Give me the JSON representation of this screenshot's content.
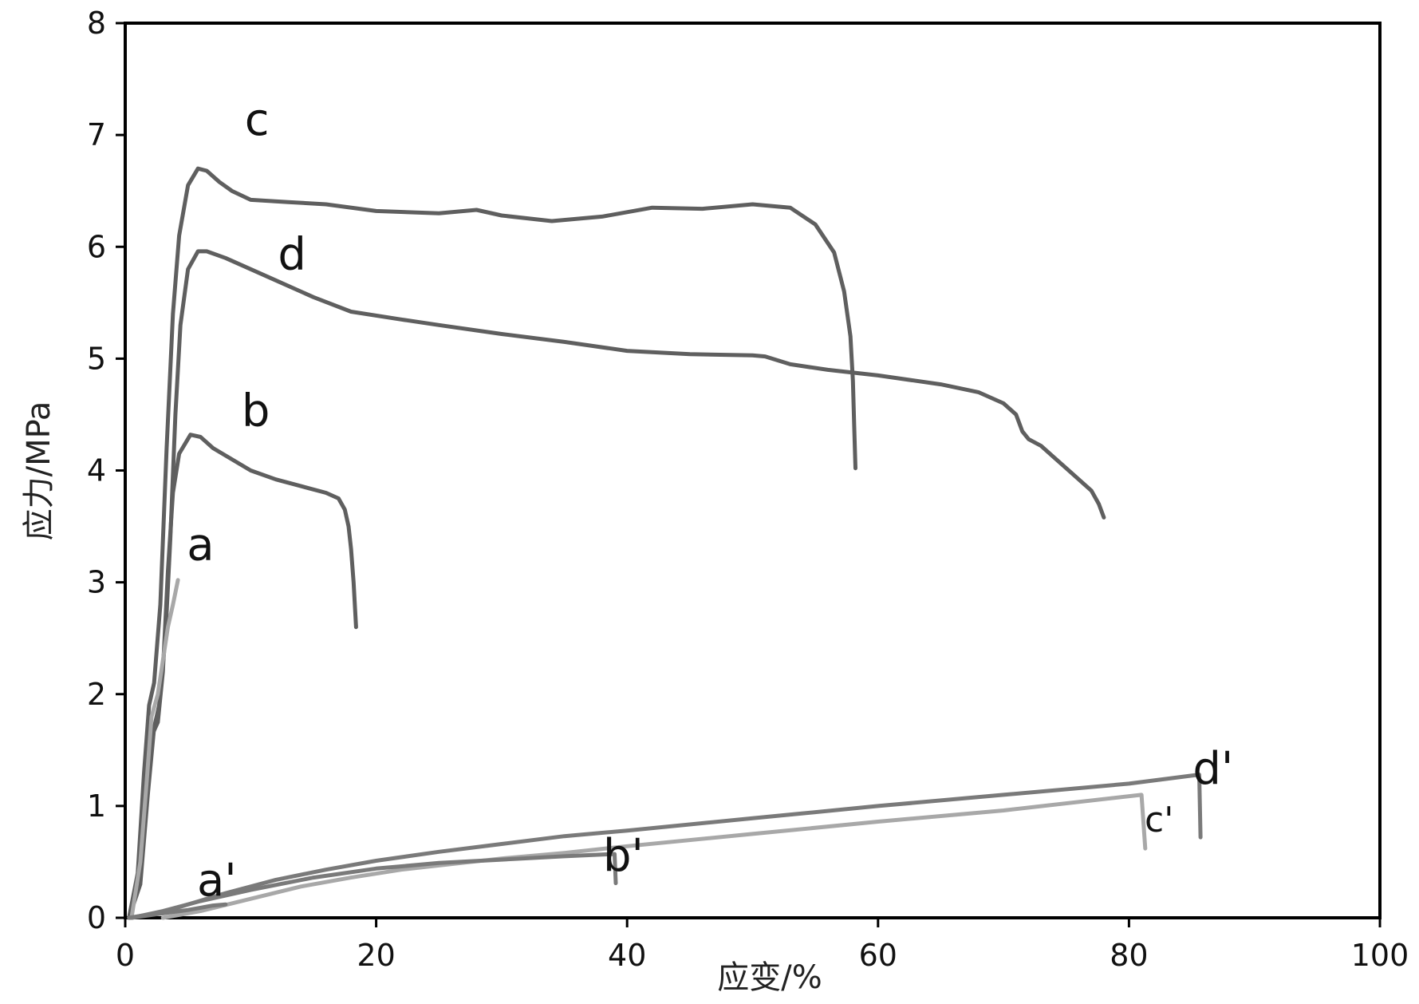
{
  "chart_data": {
    "type": "line",
    "xlabel": "应变/%",
    "ylabel": "应力/MPa",
    "xlim": [
      0,
      100
    ],
    "ylim": [
      0,
      8
    ],
    "x_ticks": [
      "0",
      "20",
      "40",
      "60",
      "80",
      "100"
    ],
    "y_ticks": [
      "0",
      "1",
      "2",
      "3",
      "4",
      "5",
      "6",
      "7",
      "8"
    ],
    "grid": false,
    "colors": {
      "dark": "#5f5f5f",
      "mid": "#7a7a7a",
      "light": "#a8a8a8"
    },
    "series": [
      {
        "name": "c",
        "color": "dark",
        "points": [
          [
            0.3,
            0
          ],
          [
            1.0,
            0.4
          ],
          [
            1.5,
            1.3
          ],
          [
            1.9,
            1.9
          ],
          [
            2.3,
            2.1
          ],
          [
            2.8,
            2.8
          ],
          [
            3.3,
            4.2
          ],
          [
            3.8,
            5.4
          ],
          [
            4.3,
            6.1
          ],
          [
            5.0,
            6.55
          ],
          [
            5.8,
            6.7
          ],
          [
            6.5,
            6.68
          ],
          [
            7.5,
            6.58
          ],
          [
            8.5,
            6.5
          ],
          [
            10,
            6.42
          ],
          [
            13,
            6.4
          ],
          [
            16,
            6.38
          ],
          [
            20,
            6.32
          ],
          [
            25,
            6.3
          ],
          [
            28,
            6.33
          ],
          [
            30,
            6.28
          ],
          [
            34,
            6.23
          ],
          [
            38,
            6.27
          ],
          [
            42,
            6.35
          ],
          [
            46,
            6.34
          ],
          [
            50,
            6.38
          ],
          [
            53,
            6.35
          ],
          [
            55,
            6.2
          ],
          [
            56.5,
            5.95
          ],
          [
            57.3,
            5.6
          ],
          [
            57.8,
            5.2
          ],
          [
            58.0,
            4.8
          ],
          [
            58.1,
            4.4
          ],
          [
            58.2,
            4.02
          ]
        ]
      },
      {
        "name": "d",
        "color": "dark",
        "points": [
          [
            0.3,
            0
          ],
          [
            1.2,
            0.3
          ],
          [
            1.8,
            1.1
          ],
          [
            2.3,
            1.7
          ],
          [
            2.7,
            1.9
          ],
          [
            3.2,
            2.5
          ],
          [
            3.6,
            3.4
          ],
          [
            4.0,
            4.5
          ],
          [
            4.4,
            5.3
          ],
          [
            5.0,
            5.8
          ],
          [
            5.8,
            5.96
          ],
          [
            6.5,
            5.96
          ],
          [
            8,
            5.9
          ],
          [
            10,
            5.8
          ],
          [
            12,
            5.7
          ],
          [
            15,
            5.55
          ],
          [
            18,
            5.42
          ],
          [
            22,
            5.35
          ],
          [
            25,
            5.3
          ],
          [
            30,
            5.22
          ],
          [
            35,
            5.15
          ],
          [
            40,
            5.07
          ],
          [
            45,
            5.04
          ],
          [
            50,
            5.03
          ],
          [
            51,
            5.02
          ],
          [
            53,
            4.95
          ],
          [
            56,
            4.9
          ],
          [
            60,
            4.85
          ],
          [
            65,
            4.77
          ],
          [
            68,
            4.7
          ],
          [
            70,
            4.6
          ],
          [
            71,
            4.5
          ],
          [
            71.5,
            4.35
          ],
          [
            72,
            4.28
          ],
          [
            73,
            4.22
          ],
          [
            74,
            4.12
          ],
          [
            75,
            4.02
          ],
          [
            76,
            3.92
          ],
          [
            77,
            3.82
          ],
          [
            77.6,
            3.7
          ],
          [
            78,
            3.58
          ]
        ]
      },
      {
        "name": "b",
        "color": "dark",
        "points": [
          [
            0.4,
            0
          ],
          [
            1.2,
            0.4
          ],
          [
            1.8,
            1.2
          ],
          [
            2.2,
            1.65
          ],
          [
            2.6,
            1.75
          ],
          [
            3.0,
            2.2
          ],
          [
            3.4,
            3.1
          ],
          [
            3.8,
            3.8
          ],
          [
            4.3,
            4.15
          ],
          [
            5.2,
            4.32
          ],
          [
            6.0,
            4.3
          ],
          [
            7,
            4.2
          ],
          [
            8.5,
            4.1
          ],
          [
            10,
            4.0
          ],
          [
            12,
            3.92
          ],
          [
            14,
            3.86
          ],
          [
            16,
            3.8
          ],
          [
            17,
            3.75
          ],
          [
            17.5,
            3.65
          ],
          [
            17.8,
            3.5
          ],
          [
            18.0,
            3.3
          ],
          [
            18.2,
            3.0
          ],
          [
            18.4,
            2.6
          ]
        ]
      },
      {
        "name": "a",
        "color": "light",
        "points": [
          [
            0.5,
            0
          ],
          [
            1.2,
            0.5
          ],
          [
            1.7,
            1.2
          ],
          [
            2.1,
            1.8
          ],
          [
            2.6,
            2.0
          ],
          [
            3.0,
            2.3
          ],
          [
            3.4,
            2.6
          ],
          [
            3.8,
            2.8
          ],
          [
            4.2,
            3.02
          ]
        ]
      },
      {
        "name": "d'",
        "color": "mid",
        "points": [
          [
            0.3,
            0
          ],
          [
            3,
            0.05
          ],
          [
            5,
            0.12
          ],
          [
            8,
            0.22
          ],
          [
            12,
            0.34
          ],
          [
            16,
            0.43
          ],
          [
            20,
            0.51
          ],
          [
            25,
            0.59
          ],
          [
            30,
            0.66
          ],
          [
            35,
            0.73
          ],
          [
            40,
            0.78
          ],
          [
            50,
            0.89
          ],
          [
            60,
            1.0
          ],
          [
            70,
            1.1
          ],
          [
            80,
            1.2
          ],
          [
            85.6,
            1.28
          ],
          [
            85.7,
            0.72
          ]
        ]
      },
      {
        "name": "c'",
        "color": "light",
        "points": [
          [
            3,
            0
          ],
          [
            6,
            0.06
          ],
          [
            10,
            0.17
          ],
          [
            14,
            0.28
          ],
          [
            18,
            0.36
          ],
          [
            22,
            0.43
          ],
          [
            26,
            0.48
          ],
          [
            30,
            0.53
          ],
          [
            35,
            0.58
          ],
          [
            40,
            0.64
          ],
          [
            50,
            0.75
          ],
          [
            60,
            0.86
          ],
          [
            70,
            0.96
          ],
          [
            81,
            1.1
          ],
          [
            81.3,
            0.62
          ]
        ]
      },
      {
        "name": "b'",
        "color": "mid",
        "points": [
          [
            0.5,
            0
          ],
          [
            3,
            0.06
          ],
          [
            6,
            0.15
          ],
          [
            10,
            0.25
          ],
          [
            15,
            0.36
          ],
          [
            20,
            0.44
          ],
          [
            25,
            0.49
          ],
          [
            30,
            0.52
          ],
          [
            35,
            0.55
          ],
          [
            39,
            0.57
          ],
          [
            39.1,
            0.31
          ]
        ]
      },
      {
        "name": "a'",
        "color": "mid",
        "points": [
          [
            0.5,
            0
          ],
          [
            3,
            0.04
          ],
          [
            5,
            0.07
          ],
          [
            7,
            0.11
          ],
          [
            8,
            0.12
          ]
        ]
      }
    ],
    "labels": [
      {
        "text": "c",
        "x": 10.5,
        "y": 7.0
      },
      {
        "text": "d",
        "x": 13.3,
        "y": 5.8
      },
      {
        "text": "b",
        "x": 10.4,
        "y": 4.4
      },
      {
        "text": "a",
        "x": 6.0,
        "y": 3.2
      },
      {
        "text": "d'",
        "x": 86.7,
        "y": 1.2
      },
      {
        "text": "c'",
        "x": 82.4,
        "y": 0.77
      },
      {
        "text": "b'",
        "x": 39.7,
        "y": 0.42
      },
      {
        "text": "a'",
        "x": 7.3,
        "y": 0.2
      }
    ]
  }
}
